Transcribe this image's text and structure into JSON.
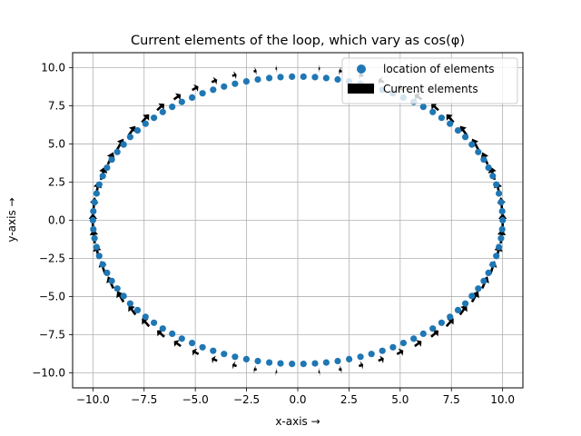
{
  "chart_data": {
    "type": "scatter",
    "title": "Current elements of the loop, which vary as cos(φ)",
    "xlabel": "x-axis  →",
    "ylabel": "y-axis  →",
    "xlim": [
      -10.99,
      10.99
    ],
    "ylim": [
      -10.99,
      10.99
    ],
    "xticks": [
      -10.0,
      -7.5,
      -5.0,
      -2.5,
      0.0,
      2.5,
      5.0,
      7.5,
      10.0
    ],
    "yticks": [
      -10.0,
      -7.5,
      -5.0,
      -2.5,
      0.0,
      2.5,
      5.0,
      7.5,
      10.0
    ],
    "xtick_labels": [
      "−10.0",
      "−7.5",
      "−5.0",
      "−2.5",
      "0.0",
      "2.5",
      "5.0",
      "7.5",
      "10.0"
    ],
    "ytick_labels": [
      "−10.0",
      "−7.5",
      "−5.0",
      "−2.5",
      "0.0",
      "2.5",
      "5.0",
      "7.5",
      "10.0"
    ],
    "grid": true,
    "legend_position": "upper-right",
    "series": [
      {
        "name": "location of elements",
        "kind": "scatter",
        "color": "#1f77b4",
        "x": [
          10.0,
          9.98,
          9.92,
          9.82,
          9.69,
          9.52,
          9.31,
          9.08,
          8.81,
          8.5,
          8.18,
          7.82,
          7.43,
          7.02,
          6.59,
          6.13,
          5.66,
          5.16,
          4.65,
          4.13,
          3.6,
          3.06,
          2.51,
          1.95,
          1.39,
          0.84,
          0.28,
          -0.28,
          -0.84,
          -1.39,
          -1.95,
          -2.51,
          -3.06,
          -3.6,
          -4.13,
          -4.65,
          -5.16,
          -5.66,
          -6.13,
          -6.59,
          -7.02,
          -7.43,
          -7.82,
          -8.18,
          -8.5,
          -8.81,
          -9.08,
          -9.31,
          -9.52,
          -9.69,
          -9.82,
          -9.92,
          -9.98,
          -10.0,
          -9.98,
          -9.92,
          -9.82,
          -9.69,
          -9.52,
          -9.31,
          -9.08,
          -8.81,
          -8.5,
          -8.18,
          -7.82,
          -7.43,
          -7.02,
          -6.59,
          -6.13,
          -5.66,
          -5.16,
          -4.65,
          -4.13,
          -3.6,
          -3.06,
          -2.51,
          -1.95,
          -1.39,
          -0.84,
          -0.28,
          0.28,
          0.84,
          1.39,
          1.95,
          2.51,
          3.06,
          3.6,
          4.13,
          4.65,
          5.16,
          5.66,
          6.13,
          6.59,
          7.02,
          7.43,
          7.82,
          8.18,
          8.5,
          8.81,
          9.08,
          9.31,
          9.52,
          9.69,
          9.82,
          9.92,
          9.98
        ],
        "y": [
          0.0,
          0.59,
          1.18,
          1.76,
          2.34,
          2.9,
          3.45,
          3.98,
          4.48,
          4.97,
          5.46,
          5.89,
          6.33,
          6.72,
          7.1,
          7.44,
          7.76,
          8.05,
          8.33,
          8.56,
          8.77,
          8.95,
          9.11,
          9.23,
          9.33,
          9.39,
          9.42,
          9.42,
          9.39,
          9.33,
          9.23,
          9.11,
          8.95,
          8.77,
          8.56,
          8.33,
          8.05,
          7.76,
          7.44,
          7.1,
          6.72,
          6.33,
          5.89,
          5.46,
          4.97,
          4.48,
          3.98,
          3.45,
          2.9,
          2.34,
          1.76,
          1.18,
          0.59,
          0.0,
          -0.59,
          -1.18,
          -1.76,
          -2.34,
          -2.9,
          -3.45,
          -3.98,
          -4.48,
          -4.97,
          -5.46,
          -5.89,
          -6.33,
          -6.72,
          -7.1,
          -7.44,
          -7.76,
          -8.05,
          -8.33,
          -8.56,
          -8.77,
          -8.95,
          -9.11,
          -9.23,
          -9.33,
          -9.39,
          -9.42,
          -9.42,
          -9.39,
          -9.33,
          -9.23,
          -9.11,
          -8.95,
          -8.77,
          -8.56,
          -8.33,
          -8.05,
          -7.76,
          -7.44,
          -7.1,
          -6.72,
          -6.33,
          -5.89,
          -5.46,
          -4.97,
          -4.48,
          -3.98,
          -3.45,
          -2.9,
          -2.34,
          -1.76,
          -1.18,
          -0.59
        ]
      },
      {
        "name": "Current elements",
        "kind": "quiver",
        "color": "#000000",
        "count": 60,
        "direction": "tangent (counter-clockwise), magnitude proportional to cos(φ)"
      }
    ]
  }
}
